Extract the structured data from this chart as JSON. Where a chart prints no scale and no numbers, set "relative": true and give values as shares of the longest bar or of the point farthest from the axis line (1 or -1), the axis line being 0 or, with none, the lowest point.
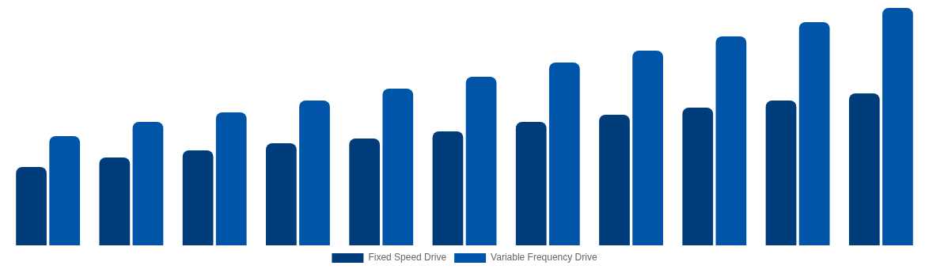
{
  "chart_data": {
    "type": "bar",
    "relative": true,
    "legend": "bottom",
    "categories": [
      null,
      null,
      null,
      null,
      null,
      null,
      null,
      null,
      null,
      null,
      null
    ],
    "series": [
      {
        "name": "Fixed Speed Drive",
        "color": "#003b7a",
        "values": [
          0.33,
          0.37,
          0.4,
          0.43,
          0.45,
          0.48,
          0.52,
          0.55,
          0.58,
          0.61,
          0.64
        ]
      },
      {
        "name": "Variable Frequency Drive",
        "color": "#0055a8",
        "values": [
          0.46,
          0.52,
          0.56,
          0.61,
          0.66,
          0.71,
          0.77,
          0.82,
          0.88,
          0.94,
          1
        ]
      }
    ]
  }
}
